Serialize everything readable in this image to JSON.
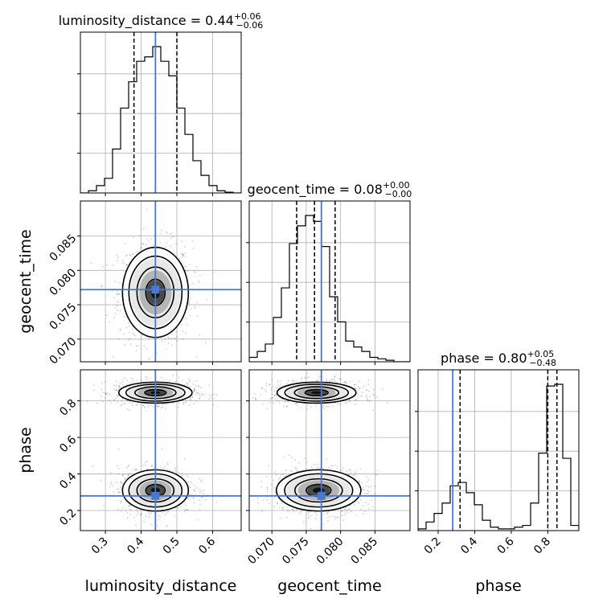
{
  "chart_data": {
    "type": "corner",
    "parameters": [
      "luminosity_distance",
      "geocent_time",
      "phase"
    ],
    "truth_color": "#4878cf",
    "truths": {
      "luminosity_distance": 0.44,
      "geocent_time": 0.0772,
      "phase": 0.28
    },
    "titles": [
      {
        "param": "luminosity_distance",
        "label": "luminosity_distance = 0.44",
        "plus": "+0.06",
        "minus": "−0.06"
      },
      {
        "param": "geocent_time",
        "label": "geocent_time = 0.08",
        "plus": "+0.00",
        "minus": "−0.00"
      },
      {
        "param": "phase",
        "label": "phase = 0.80",
        "plus": "+0.05",
        "minus": "−0.48"
      }
    ],
    "quantiles": {
      "luminosity_distance": [
        0.38,
        0.44,
        0.5
      ],
      "geocent_time": [
        0.0736,
        0.0762,
        0.0792
      ],
      "phase": [
        0.32,
        0.8,
        0.85
      ]
    },
    "ranges": {
      "luminosity_distance": [
        0.23,
        0.68
      ],
      "geocent_time": [
        0.0667,
        0.0901
      ],
      "phase": [
        0.09,
        0.97
      ]
    },
    "ticks": {
      "luminosity_distance": {
        "values": [
          0.3,
          0.4,
          0.5,
          0.6
        ],
        "labels": [
          "0.3",
          "0.4",
          "0.5",
          "0.6"
        ]
      },
      "geocent_time": {
        "values": [
          0.07,
          0.075,
          0.08,
          0.085
        ],
        "labels": [
          "0.070",
          "0.075",
          "0.080",
          "0.085"
        ]
      },
      "phase": {
        "values": [
          0.2,
          0.4,
          0.6,
          0.8
        ],
        "labels": [
          "0.2",
          "0.4",
          "0.6",
          "0.8"
        ]
      }
    },
    "histograms": {
      "luminosity_distance": {
        "bins": [
          0.23,
          0.2525,
          0.275,
          0.2975,
          0.32,
          0.3425,
          0.365,
          0.3875,
          0.41,
          0.4325,
          0.455,
          0.4775,
          0.5,
          0.5225,
          0.545,
          0.5675,
          0.59,
          0.6125,
          0.635,
          0.6575,
          0.68
        ],
        "counts": [
          0,
          0.015,
          0.05,
          0.1,
          0.3,
          0.58,
          0.76,
          0.9,
          0.93,
          1.0,
          0.9,
          0.8,
          0.58,
          0.4,
          0.22,
          0.12,
          0.05,
          0.015,
          0.005,
          0
        ]
      },
      "geocent_time": {
        "bins": [
          0.0667,
          0.06787,
          0.06904,
          0.07021,
          0.07138,
          0.07255,
          0.07372,
          0.07489,
          0.07606,
          0.07723,
          0.0784,
          0.07957,
          0.08074,
          0.08191,
          0.08308,
          0.08425,
          0.08542,
          0.08659,
          0.08776,
          0.08893,
          0.0901
        ],
        "counts": [
          0.03,
          0.07,
          0.12,
          0.3,
          0.5,
          0.8,
          0.92,
          0.99,
          0.95,
          0.78,
          0.44,
          0.27,
          0.14,
          0.1,
          0.07,
          0.03,
          0.02,
          0.01,
          0,
          0
        ]
      },
      "phase": {
        "bins": [
          0.09,
          0.134,
          0.178,
          0.222,
          0.266,
          0.31,
          0.354,
          0.398,
          0.442,
          0.486,
          0.53,
          0.574,
          0.618,
          0.662,
          0.706,
          0.75,
          0.794,
          0.838,
          0.882,
          0.926,
          0.97
        ],
        "counts": [
          0.01,
          0.05,
          0.1,
          0.16,
          0.26,
          0.28,
          0.22,
          0.15,
          0.06,
          0.02,
          0.01,
          0.01,
          0.02,
          0.03,
          0.16,
          0.45,
          0.84,
          0.85,
          0.42,
          0.03
        ]
      }
    },
    "density_2d": [
      {
        "x": "luminosity_distance",
        "y": "geocent_time",
        "modes": [
          {
            "cx": 0.44,
            "cy": 0.0768,
            "sx": 0.045,
            "sy": 0.0032
          }
        ]
      },
      {
        "x": "luminosity_distance",
        "y": "phase",
        "modes": [
          {
            "cx": 0.44,
            "cy": 0.845,
            "sx": 0.05,
            "sy": 0.028
          },
          {
            "cx": 0.44,
            "cy": 0.31,
            "sx": 0.045,
            "sy": 0.055
          }
        ]
      },
      {
        "x": "geocent_time",
        "y": "phase",
        "modes": [
          {
            "cx": 0.0765,
            "cy": 0.845,
            "sx": 0.0028,
            "sy": 0.028
          },
          {
            "cx": 0.0768,
            "cy": 0.31,
            "sx": 0.003,
            "sy": 0.055
          }
        ]
      }
    ],
    "grid": true
  }
}
